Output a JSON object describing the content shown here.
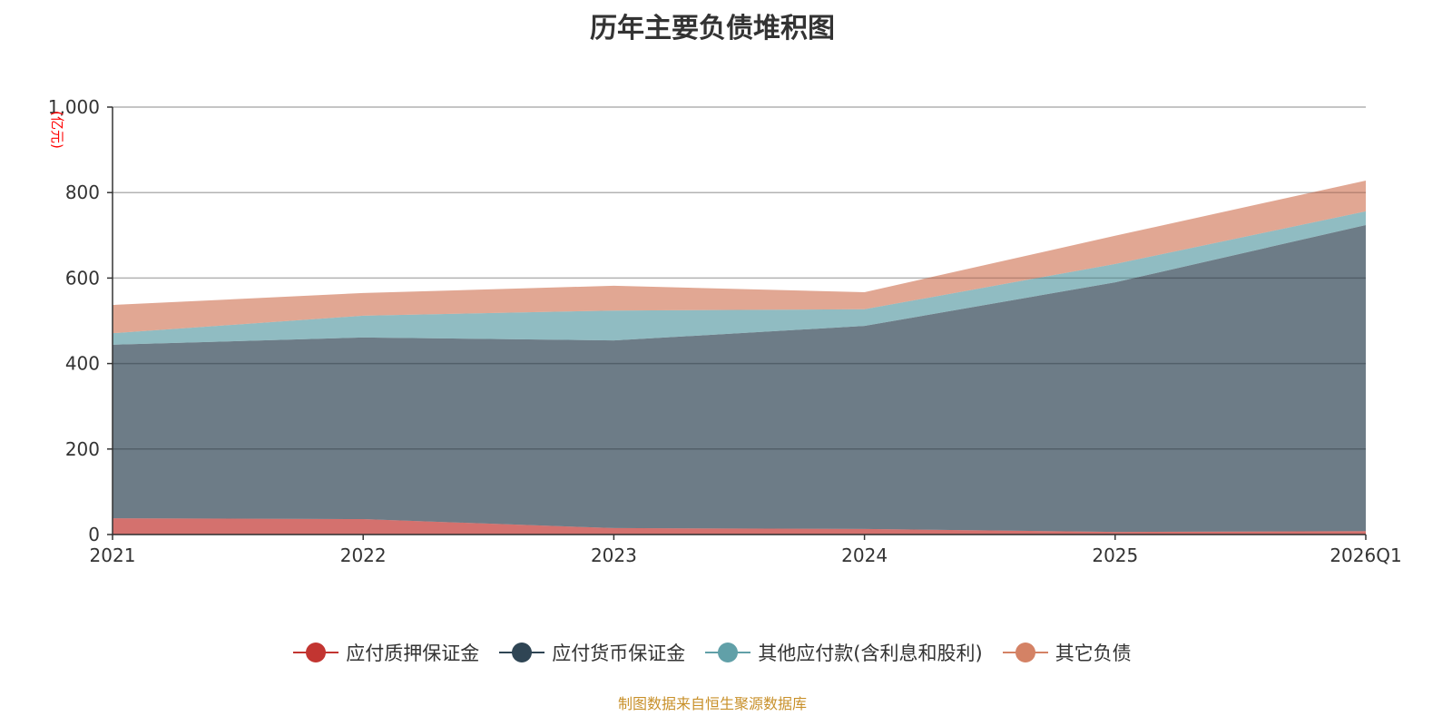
{
  "chart_data": {
    "type": "area",
    "stacked": true,
    "title": "历年主要负债堆积图",
    "ylabel": "(亿元)",
    "xlabel": "",
    "ylim": [
      0,
      1000
    ],
    "yticks": [
      "0",
      "200",
      "400",
      "600",
      "800",
      "1,000"
    ],
    "ytick_values": [
      0,
      200,
      400,
      600,
      800,
      1000
    ],
    "categories": [
      "2021",
      "2022",
      "2023",
      "2024",
      "2025",
      "2026Q1"
    ],
    "grid": true,
    "legend_position": "bottom",
    "series": [
      {
        "name": "应付质押保证金",
        "color": "#c23531",
        "values": [
          38,
          36,
          15,
          13,
          6,
          8
        ]
      },
      {
        "name": "应付货币保证金",
        "color": "#2f4554",
        "values": [
          406,
          425,
          439,
          475,
          584,
          716
        ]
      },
      {
        "name": "其他应付款(含利息和股利)",
        "color": "#61a0a8",
        "values": [
          27,
          51,
          70,
          39,
          43,
          32
        ]
      },
      {
        "name": "其它负债",
        "color": "#d48265",
        "values": [
          66,
          53,
          58,
          40,
          66,
          72
        ]
      }
    ]
  },
  "footer": "制图数据来自恒生聚源数据库"
}
